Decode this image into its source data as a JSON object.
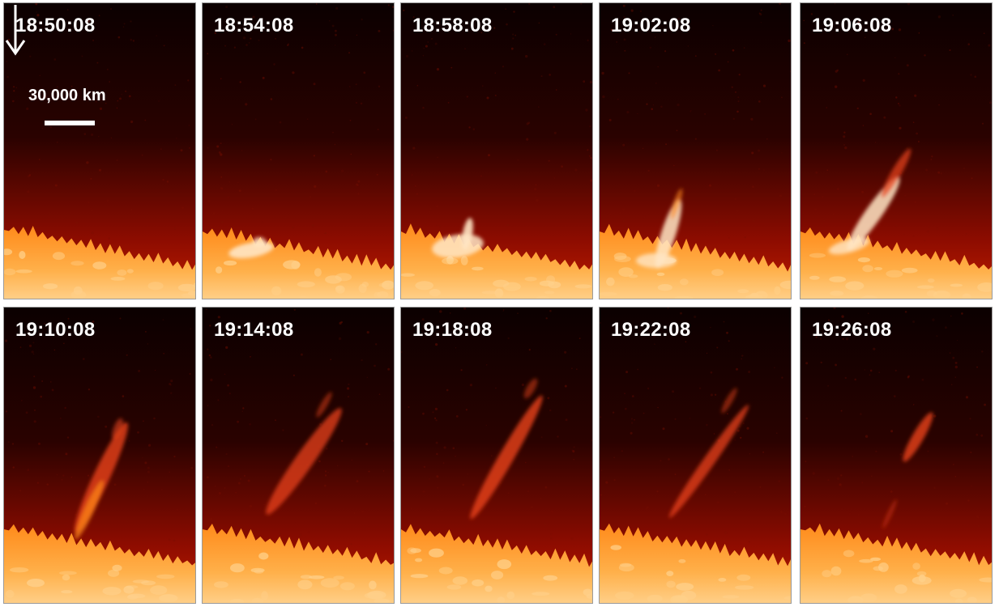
{
  "figure": {
    "panels": [
      {
        "time": "18:50:08",
        "stage": 0
      },
      {
        "time": "18:54:08",
        "stage": 1
      },
      {
        "time": "18:58:08",
        "stage": 2
      },
      {
        "time": "19:02:08",
        "stage": 3
      },
      {
        "time": "19:06:08",
        "stage": 4
      },
      {
        "time": "19:10:08",
        "stage": 5
      },
      {
        "time": "19:14:08",
        "stage": 6
      },
      {
        "time": "19:18:08",
        "stage": 7
      },
      {
        "time": "19:22:08",
        "stage": 8
      },
      {
        "time": "19:26:08",
        "stage": 9
      }
    ],
    "scale_bar": {
      "label": "30,000 km"
    },
    "colors": {
      "space_dark": "#0b0000",
      "corona_red": "#8e0c00",
      "limb_orange": "#ff8a1a",
      "limb_bright": "#ffd08a",
      "jet_bright": "#ffe6c4",
      "jet_red": "#e8421a"
    },
    "icons": {
      "pointer": "down-arrow-icon"
    }
  }
}
